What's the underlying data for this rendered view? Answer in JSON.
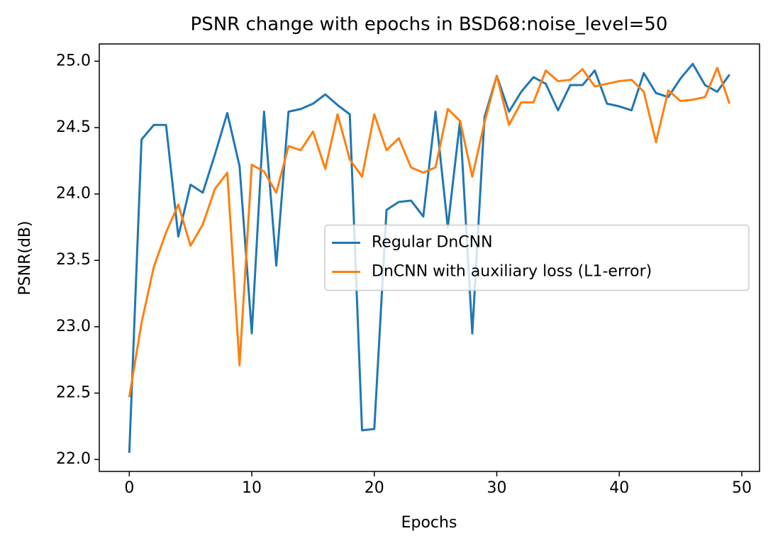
{
  "chart_data": {
    "type": "line",
    "title": "PSNR change with epochs in BSD68:noise_level=50",
    "x_label": "Epochs",
    "y_label": "PSNR(dB)",
    "x": [
      0,
      1,
      2,
      3,
      4,
      5,
      6,
      7,
      8,
      9,
      10,
      11,
      12,
      13,
      14,
      15,
      16,
      17,
      18,
      19,
      20,
      21,
      22,
      23,
      24,
      25,
      26,
      27,
      28,
      29,
      30,
      31,
      32,
      33,
      34,
      35,
      36,
      37,
      38,
      39,
      40,
      41,
      42,
      43,
      44,
      45,
      46,
      47,
      48,
      49
    ],
    "series": [
      {
        "name": "Regular DnCNN",
        "color": "#1f77b4",
        "values": [
          22.05,
          24.41,
          24.52,
          24.52,
          23.68,
          24.07,
          24.01,
          24.3,
          24.61,
          24.21,
          22.95,
          24.62,
          23.46,
          24.62,
          24.64,
          24.68,
          24.75,
          24.67,
          24.6,
          22.22,
          22.23,
          23.88,
          23.94,
          23.95,
          23.83,
          24.62,
          23.75,
          24.55,
          22.95,
          24.58,
          24.89,
          24.62,
          24.77,
          24.88,
          24.83,
          24.63,
          24.82,
          24.82,
          24.93,
          24.68,
          24.66,
          24.63,
          24.91,
          24.76,
          24.73,
          24.87,
          24.98,
          24.82,
          24.77,
          24.9
        ]
      },
      {
        "name": "DnCNN with auxiliary loss (L1-error)",
        "color": "#ff7f0e",
        "values": [
          22.47,
          23.03,
          23.45,
          23.71,
          23.92,
          23.61,
          23.77,
          24.04,
          24.16,
          22.71,
          24.22,
          24.17,
          24.01,
          24.36,
          24.33,
          24.47,
          24.19,
          24.6,
          24.26,
          24.13,
          24.6,
          24.33,
          24.42,
          24.2,
          24.16,
          24.2,
          24.64,
          24.55,
          24.13,
          24.54,
          24.89,
          24.52,
          24.69,
          24.69,
          24.93,
          24.85,
          24.86,
          24.94,
          24.81,
          24.83,
          24.85,
          24.86,
          24.77,
          24.39,
          24.78,
          24.7,
          24.71,
          24.73,
          24.95,
          24.68
        ]
      }
    ],
    "xlim": [
      -2.45,
      51.45
    ],
    "xticks": [
      0,
      10,
      20,
      30,
      40,
      50
    ],
    "ylim": [
      21.91,
      25.13
    ],
    "yticks": [
      {
        "value": 22,
        "label": "22.0"
      },
      22.5,
      {
        "value": 23,
        "label": "23.0"
      },
      23.5,
      {
        "value": 24,
        "label": "24.0"
      },
      24.5,
      {
        "value": 25,
        "label": "25.0"
      }
    ],
    "legend": "center right",
    "grid": false
  }
}
